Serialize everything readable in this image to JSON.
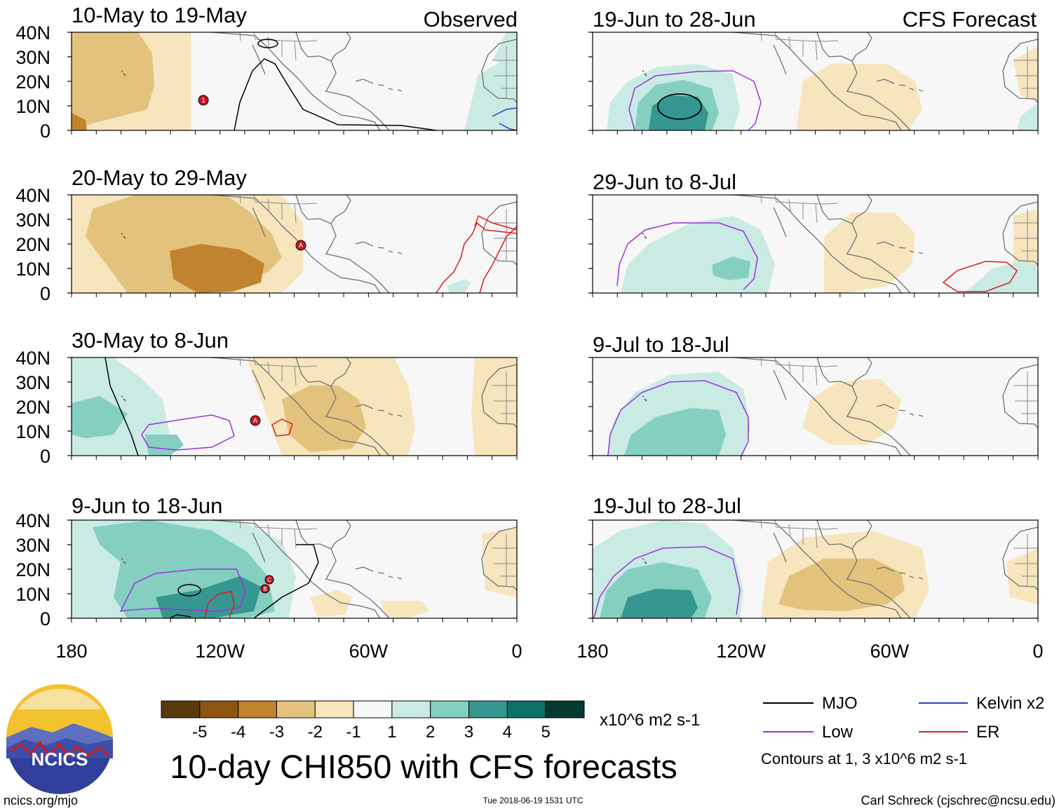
{
  "header": {
    "observed_label": "Observed",
    "forecast_label": "CFS Forecast"
  },
  "left_panels": [
    {
      "period": "10-May to 19-May"
    },
    {
      "period": "20-May to 29-May"
    },
    {
      "period": "30-May to 8-Jun"
    },
    {
      "period": "9-Jun to 18-Jun"
    }
  ],
  "right_panels": [
    {
      "period": "19-Jun to 28-Jun"
    },
    {
      "period": "29-Jun to 8-Jul"
    },
    {
      "period": "9-Jul to 18-Jul"
    },
    {
      "period": "19-Jul to 28-Jul"
    }
  ],
  "axes": {
    "lat_labels": [
      "40N",
      "30N",
      "20N",
      "10N",
      "0"
    ],
    "lon_labels": [
      "180",
      "120W",
      "60W",
      "0"
    ]
  },
  "storm_markers": [
    "1",
    "A",
    "A",
    "C",
    "B"
  ],
  "colorbar": {
    "colors": [
      "#5a3a0d",
      "#8e5511",
      "#c0832e",
      "#e3c27d",
      "#f6e5bd",
      "#f7f7f7",
      "#c9ebe3",
      "#85cfc1",
      "#35978f",
      "#0b7267",
      "#053a30"
    ],
    "tick_labels": [
      "-5",
      "-4",
      "-3",
      "-2",
      "-1",
      "1",
      "2",
      "3",
      "4",
      "5"
    ],
    "units": "x10^6 m2 s-1"
  },
  "legend": {
    "items": [
      {
        "label": "MJO",
        "color": "#000000"
      },
      {
        "label": "Kelvin x2",
        "color": "#1f3fd6"
      },
      {
        "label": "Low",
        "color": "#9a32e0"
      },
      {
        "label": "ER",
        "color": "#e01b1b"
      }
    ],
    "contours_note": "Contours at 1, 3 x10^6 m2 s-1"
  },
  "logo_text": "NCICS",
  "main_title": "10-day CHI850 with CFS forecasts",
  "footer": {
    "url": "ncics.org/mjo",
    "timestamp": "Tue 2018-06-19 1531 UTC",
    "author": "Carl Schreck (cjschrec@ncsu.edu)"
  }
}
